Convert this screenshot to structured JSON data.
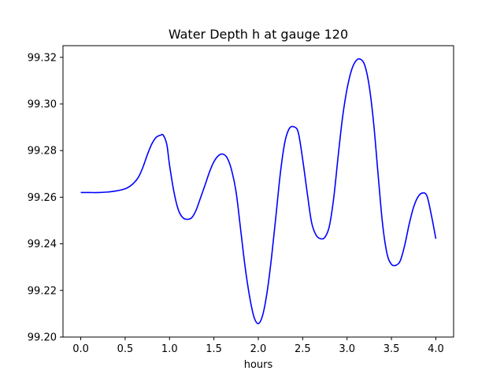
{
  "chart_data": {
    "type": "line",
    "title": "Water Depth h at gauge 120",
    "xlabel": "hours",
    "ylabel": "",
    "xlim": [
      -0.2,
      4.2
    ],
    "ylim": [
      99.2,
      99.325
    ],
    "xticks": [
      0.0,
      0.5,
      1.0,
      1.5,
      2.0,
      2.5,
      3.0,
      3.5,
      4.0
    ],
    "xtick_labels": [
      "0.0",
      "0.5",
      "1.0",
      "1.5",
      "2.0",
      "2.5",
      "3.0",
      "3.5",
      "4.0"
    ],
    "yticks": [
      99.2,
      99.22,
      99.24,
      99.26,
      99.28,
      99.3,
      99.32
    ],
    "ytick_labels": [
      "99.20",
      "99.22",
      "99.24",
      "99.26",
      "99.28",
      "99.30",
      "99.32"
    ],
    "grid": false,
    "series": [
      {
        "color": "#0000ff",
        "points": [
          [
            0.0,
            99.262
          ],
          [
            0.1,
            99.262
          ],
          [
            0.2,
            99.262
          ],
          [
            0.3,
            99.2622
          ],
          [
            0.4,
            99.2627
          ],
          [
            0.5,
            99.2636
          ],
          [
            0.55,
            99.2646
          ],
          [
            0.6,
            99.2662
          ],
          [
            0.65,
            99.2686
          ],
          [
            0.7,
            99.2728
          ],
          [
            0.75,
            99.2782
          ],
          [
            0.8,
            99.2828
          ],
          [
            0.85,
            99.2857
          ],
          [
            0.9,
            99.2866
          ],
          [
            0.93,
            99.2866
          ],
          [
            0.97,
            99.2825
          ],
          [
            1.0,
            99.2738
          ],
          [
            1.05,
            99.2622
          ],
          [
            1.1,
            99.2545
          ],
          [
            1.15,
            99.2512
          ],
          [
            1.2,
            99.2505
          ],
          [
            1.25,
            99.2512
          ],
          [
            1.3,
            99.2545
          ],
          [
            1.35,
            99.2598
          ],
          [
            1.4,
            99.2652
          ],
          [
            1.45,
            99.2708
          ],
          [
            1.5,
            99.2752
          ],
          [
            1.55,
            99.2778
          ],
          [
            1.6,
            99.2785
          ],
          [
            1.65,
            99.2768
          ],
          [
            1.7,
            99.2715
          ],
          [
            1.75,
            99.2622
          ],
          [
            1.8,
            99.2465
          ],
          [
            1.85,
            99.2305
          ],
          [
            1.9,
            99.2178
          ],
          [
            1.95,
            99.2088
          ],
          [
            2.0,
            99.2058
          ],
          [
            2.05,
            99.2095
          ],
          [
            2.1,
            99.2195
          ],
          [
            2.15,
            99.2345
          ],
          [
            2.2,
            99.2525
          ],
          [
            2.25,
            99.2708
          ],
          [
            2.3,
            99.2838
          ],
          [
            2.35,
            99.2895
          ],
          [
            2.4,
            99.2902
          ],
          [
            2.45,
            99.2878
          ],
          [
            2.5,
            99.2762
          ],
          [
            2.55,
            99.2622
          ],
          [
            2.6,
            99.2492
          ],
          [
            2.65,
            99.2438
          ],
          [
            2.7,
            99.2422
          ],
          [
            2.75,
            99.2428
          ],
          [
            2.8,
            99.2475
          ],
          [
            2.85,
            99.2598
          ],
          [
            2.9,
            99.2778
          ],
          [
            2.95,
            99.2945
          ],
          [
            3.0,
            99.3065
          ],
          [
            3.05,
            99.3145
          ],
          [
            3.1,
            99.3185
          ],
          [
            3.15,
            99.3192
          ],
          [
            3.2,
            99.3165
          ],
          [
            3.25,
            99.3075
          ],
          [
            3.3,
            99.2915
          ],
          [
            3.35,
            99.2695
          ],
          [
            3.4,
            99.2485
          ],
          [
            3.45,
            99.2358
          ],
          [
            3.5,
            99.2312
          ],
          [
            3.55,
            99.2308
          ],
          [
            3.6,
            99.2328
          ],
          [
            3.65,
            99.2395
          ],
          [
            3.7,
            99.2485
          ],
          [
            3.75,
            99.2558
          ],
          [
            3.8,
            99.2602
          ],
          [
            3.85,
            99.2618
          ],
          [
            3.9,
            99.2605
          ],
          [
            3.95,
            99.2522
          ],
          [
            4.0,
            99.2422
          ]
        ]
      }
    ]
  }
}
